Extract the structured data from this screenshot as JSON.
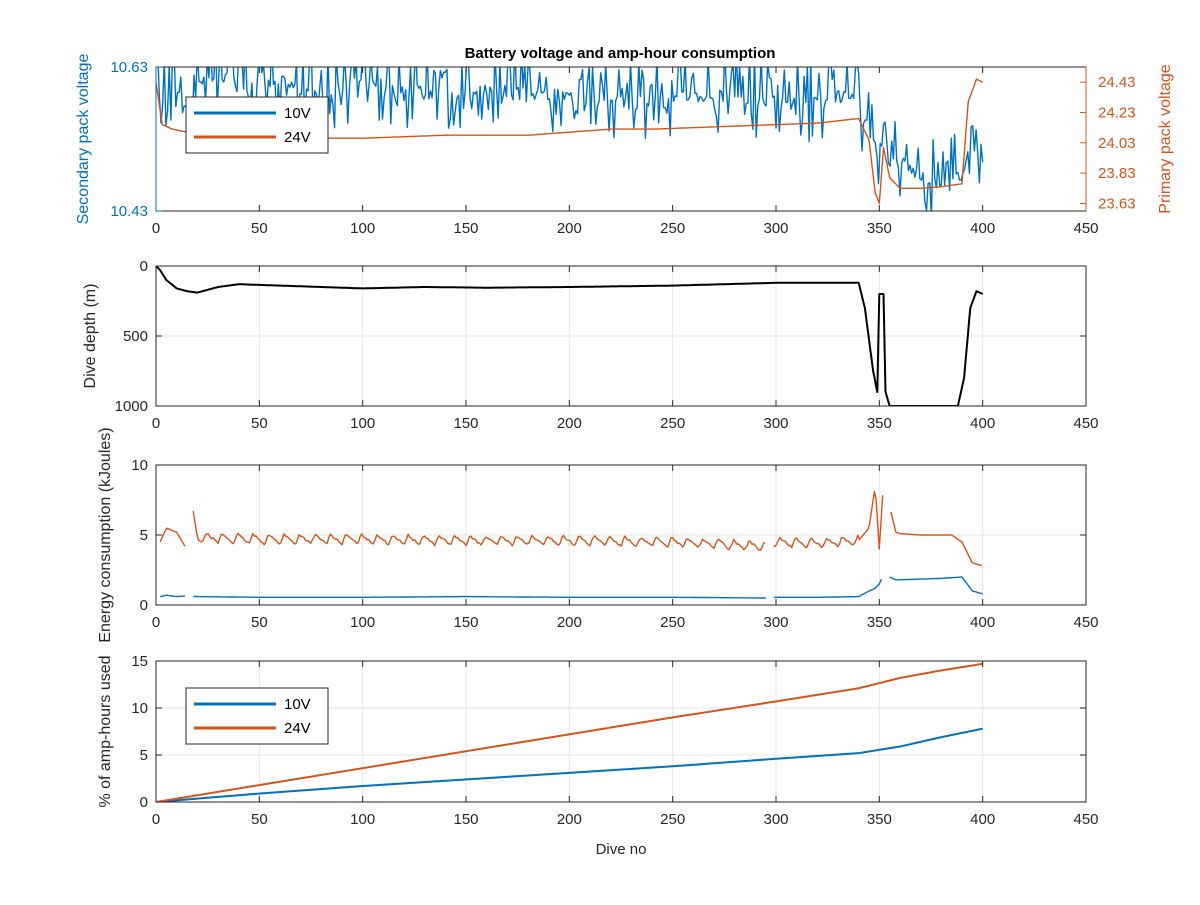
{
  "figure": {
    "title": "Battery voltage and amp-hour consumption",
    "colors": {
      "series_10v": "#0072BD",
      "series_24v": "#D95319",
      "depth": "#000000",
      "axes": "#262626",
      "grid": "#e6e6e6"
    }
  },
  "chart_data": [
    {
      "type": "line",
      "title": "Battery voltage and amp-hour consumption",
      "xlabel": "",
      "ylabel": "Secondary pack voltage",
      "ylabel_right": "Primary pack voltage",
      "xlim": [
        0,
        450
      ],
      "ylim": [
        10.43,
        10.63
      ],
      "ylim_right": [
        23.58,
        24.53
      ],
      "xticks": [
        "0",
        "50",
        "100",
        "150",
        "200",
        "250",
        "300",
        "350",
        "400",
        "450"
      ],
      "yticks_left": [
        "10.43",
        "10.63"
      ],
      "yticks_right": [
        "23.63",
        "23.83",
        "24.03",
        "24.23",
        "24.43"
      ],
      "grid": false,
      "legend": {
        "position": "top-left",
        "entries": [
          "10V",
          "24V"
        ]
      },
      "series": [
        {
          "name": "10V",
          "axis": "left",
          "x": [
            0,
            2,
            5,
            10,
            15,
            20,
            25,
            30,
            40,
            50,
            60,
            70,
            80,
            90,
            100,
            120,
            140,
            160,
            180,
            200,
            220,
            240,
            260,
            280,
            300,
            320,
            335,
            342,
            347,
            350,
            355,
            360,
            370,
            380,
            390,
            395,
            400
          ],
          "y": [
            10.63,
            10.59,
            10.57,
            10.6,
            10.57,
            10.6,
            10.61,
            10.62,
            10.61,
            10.6,
            10.61,
            10.6,
            10.6,
            10.6,
            10.61,
            10.6,
            10.59,
            10.6,
            10.59,
            10.59,
            10.58,
            10.58,
            10.59,
            10.59,
            10.58,
            10.58,
            10.59,
            10.56,
            10.53,
            10.52,
            10.5,
            10.5,
            10.48,
            10.47,
            10.48,
            10.53,
            10.49
          ],
          "noise_amplitude": 0.05
        },
        {
          "name": "24V",
          "axis": "right",
          "x": [
            0,
            3,
            8,
            15,
            25,
            40,
            60,
            80,
            100,
            120,
            140,
            160,
            180,
            200,
            220,
            240,
            260,
            280,
            300,
            320,
            340,
            345,
            348,
            350,
            352,
            355,
            360,
            370,
            380,
            390,
            393,
            397,
            400
          ],
          "y": [
            24.43,
            24.15,
            24.12,
            24.1,
            24.08,
            24.06,
            24.07,
            24.06,
            24.06,
            24.07,
            24.08,
            24.08,
            24.08,
            24.1,
            24.12,
            24.12,
            24.13,
            24.14,
            24.15,
            24.16,
            24.19,
            24.05,
            23.7,
            23.63,
            24.0,
            23.8,
            23.73,
            23.73,
            23.74,
            23.76,
            24.3,
            24.45,
            24.43
          ]
        }
      ]
    },
    {
      "type": "line",
      "xlabel": "",
      "ylabel": "Dive depth (m)",
      "xlim": [
        0,
        450
      ],
      "ylim": [
        0,
        1000
      ],
      "y_reversed": true,
      "xticks": [
        "0",
        "50",
        "100",
        "150",
        "200",
        "250",
        "300",
        "350",
        "400",
        "450"
      ],
      "yticks": [
        "0",
        "500",
        "1000"
      ],
      "grid": true,
      "series": [
        {
          "x": [
            0,
            2,
            5,
            10,
            15,
            20,
            30,
            40,
            60,
            80,
            100,
            130,
            160,
            200,
            250,
            300,
            340,
            343,
            347,
            349,
            350,
            352,
            353,
            355,
            360,
            380,
            388,
            391,
            394,
            397,
            400
          ],
          "y": [
            0,
            30,
            100,
            160,
            180,
            190,
            150,
            130,
            140,
            150,
            160,
            150,
            155,
            150,
            140,
            120,
            120,
            300,
            750,
            900,
            200,
            200,
            900,
            1000,
            1000,
            1000,
            1000,
            800,
            300,
            180,
            200
          ]
        }
      ]
    },
    {
      "type": "line",
      "xlabel": "",
      "ylabel": "Energy consumption (kJoules)",
      "xlim": [
        0,
        450
      ],
      "ylim": [
        0,
        10
      ],
      "xticks": [
        "0",
        "50",
        "100",
        "150",
        "200",
        "250",
        "300",
        "350",
        "400",
        "450"
      ],
      "yticks": [
        "0",
        "5",
        "10"
      ],
      "grid": true,
      "series": [
        {
          "name": "10V",
          "x": [
            2,
            5,
            10,
            14,
            20,
            50,
            100,
            150,
            200,
            250,
            295,
            300,
            320,
            340,
            345,
            348,
            350,
            352,
            358,
            360,
            370,
            380,
            390,
            395,
            400
          ],
          "y": [
            0.6,
            0.7,
            0.6,
            0.65,
            0.6,
            0.55,
            0.55,
            0.6,
            0.55,
            0.55,
            0.5,
            0.55,
            0.55,
            0.6,
            1.0,
            1.2,
            1.5,
            2.2,
            1.8,
            1.8,
            1.85,
            1.9,
            2.0,
            1.0,
            0.8
          ],
          "gaps_at": [
            16,
            297,
            353
          ]
        },
        {
          "name": "24V",
          "x": [
            2,
            5,
            10,
            14,
            18,
            20,
            50,
            100,
            150,
            200,
            250,
            295,
            300,
            320,
            340,
            345,
            348,
            350,
            352,
            358,
            360,
            370,
            385,
            390,
            395,
            400
          ],
          "y": [
            4.5,
            5.5,
            5.2,
            4.2,
            6.5,
            4.8,
            4.7,
            4.7,
            4.6,
            4.6,
            4.5,
            4.2,
            4.5,
            4.4,
            4.6,
            5.5,
            8.5,
            4.0,
            8.8,
            5.2,
            5.1,
            5.0,
            5.0,
            4.5,
            3.0,
            2.8
          ],
          "oscillation_amplitude": 0.7,
          "gaps_at": [
            16,
            297,
            354
          ]
        }
      ]
    },
    {
      "type": "line",
      "xlabel": "Dive no",
      "ylabel": "% of amp-hours used",
      "xlim": [
        0,
        450
      ],
      "ylim": [
        0,
        15
      ],
      "xticks": [
        "0",
        "50",
        "100",
        "150",
        "200",
        "250",
        "300",
        "350",
        "400",
        "450"
      ],
      "yticks": [
        "0",
        "5",
        "10",
        "15"
      ],
      "grid": true,
      "legend": {
        "position": "top-left",
        "entries": [
          "10V",
          "24V"
        ]
      },
      "series": [
        {
          "name": "10V",
          "x": [
            0,
            50,
            100,
            150,
            200,
            250,
            300,
            340,
            360,
            380,
            400
          ],
          "y": [
            0,
            0.9,
            1.7,
            2.4,
            3.1,
            3.8,
            4.6,
            5.2,
            5.9,
            6.9,
            7.8
          ]
        },
        {
          "name": "24V",
          "x": [
            0,
            50,
            100,
            150,
            200,
            250,
            300,
            340,
            360,
            380,
            400
          ],
          "y": [
            0,
            1.8,
            3.6,
            5.4,
            7.2,
            9.0,
            10.7,
            12.1,
            13.2,
            14.0,
            14.7
          ]
        }
      ]
    }
  ]
}
